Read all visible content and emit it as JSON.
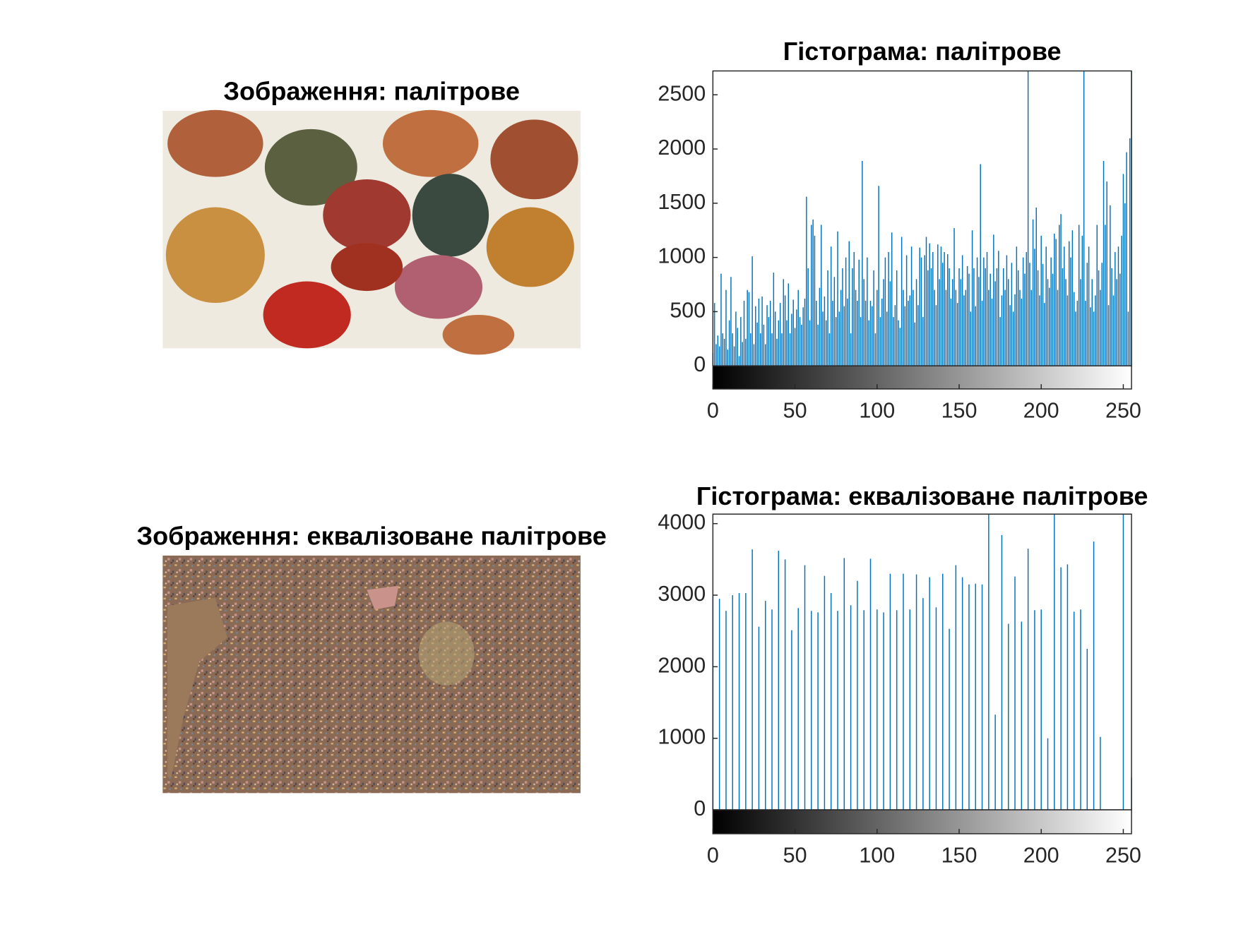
{
  "images": [
    {
      "title": "Зображення: палітрове"
    },
    {
      "title": "Зображення: еквалізоване палітрове"
    }
  ],
  "chart_data": [
    {
      "type": "stem",
      "title": "Гістограма: палітрове",
      "color": "#0072bd",
      "x": [
        0,
        1,
        2,
        3,
        4,
        5,
        6,
        7,
        8,
        9,
        10,
        11,
        12,
        13,
        14,
        15,
        16,
        17,
        18,
        19,
        20,
        21,
        22,
        23,
        24,
        25,
        26,
        27,
        28,
        29,
        30,
        31,
        32,
        33,
        34,
        35,
        36,
        37,
        38,
        39,
        40,
        41,
        42,
        43,
        44,
        45,
        46,
        47,
        48,
        49,
        50,
        51,
        52,
        53,
        54,
        55,
        56,
        57,
        58,
        59,
        60,
        61,
        62,
        63,
        64,
        65,
        66,
        67,
        68,
        69,
        70,
        71,
        72,
        73,
        74,
        75,
        76,
        77,
        78,
        79,
        80,
        81,
        82,
        83,
        84,
        85,
        86,
        87,
        88,
        89,
        90,
        91,
        92,
        93,
        94,
        95,
        96,
        97,
        98,
        99,
        100,
        101,
        102,
        103,
        104,
        105,
        106,
        107,
        108,
        109,
        110,
        111,
        112,
        113,
        114,
        115,
        116,
        117,
        118,
        119,
        120,
        121,
        122,
        123,
        124,
        125,
        126,
        127,
        128,
        129,
        130,
        131,
        132,
        133,
        134,
        135,
        136,
        137,
        138,
        139,
        140,
        141,
        142,
        143,
        144,
        145,
        146,
        147,
        148,
        149,
        150,
        151,
        152,
        153,
        154,
        155,
        156,
        157,
        158,
        159,
        160,
        161,
        162,
        163,
        164,
        165,
        166,
        167,
        168,
        169,
        170,
        171,
        172,
        173,
        174,
        175,
        176,
        177,
        178,
        179,
        180,
        181,
        182,
        183,
        184,
        185,
        186,
        187,
        188,
        189,
        190,
        191,
        192,
        193,
        194,
        195,
        196,
        197,
        198,
        199,
        200,
        201,
        202,
        203,
        204,
        205,
        206,
        207,
        208,
        209,
        210,
        211,
        212,
        213,
        214,
        215,
        216,
        217,
        218,
        219,
        220,
        221,
        222,
        223,
        224,
        225,
        226,
        227,
        228,
        229,
        230,
        231,
        232,
        233,
        234,
        235,
        236,
        237,
        238,
        239,
        240,
        241,
        242,
        243,
        244,
        245,
        246,
        247,
        248,
        249,
        250,
        251,
        252,
        253,
        254,
        255
      ],
      "values": [
        120,
        580,
        200,
        280,
        180,
        850,
        300,
        250,
        700,
        150,
        420,
        820,
        300,
        180,
        500,
        350,
        90,
        450,
        220,
        600,
        250,
        700,
        680,
        300,
        1010,
        200,
        550,
        400,
        620,
        300,
        640,
        380,
        200,
        560,
        450,
        600,
        300,
        860,
        500,
        250,
        420,
        580,
        300,
        800,
        650,
        420,
        760,
        300,
        480,
        610,
        350,
        520,
        700,
        450,
        380,
        540,
        620,
        1560,
        900,
        420,
        1300,
        1350,
        1200,
        600,
        380,
        720,
        1300,
        500,
        640,
        420,
        880,
        300,
        1100,
        600,
        820,
        450,
        1240,
        500,
        700,
        900,
        550,
        1000,
        620,
        1150,
        300,
        900,
        1050,
        700,
        600,
        980,
        450,
        1890,
        800,
        600,
        1000,
        420,
        600,
        550,
        880,
        300,
        700,
        1660,
        450,
        620,
        800,
        1000,
        500,
        1050,
        780,
        1230,
        450,
        560,
        880,
        420,
        350,
        1190,
        700,
        550,
        1020,
        600,
        650,
        1100,
        700,
        400,
        800,
        560,
        1090,
        1000,
        450,
        1020,
        1190,
        880,
        1130,
        900,
        1050,
        700,
        560,
        1120,
        800,
        1100,
        950,
        1050,
        700,
        1030,
        900,
        620,
        800,
        1270,
        700,
        580,
        900,
        800,
        1020,
        650,
        700,
        920,
        850,
        500,
        1250,
        900,
        550,
        1000,
        820,
        1860,
        600,
        1000,
        900,
        1050,
        700,
        850,
        620,
        1210,
        780,
        900,
        1060,
        450,
        650,
        900,
        700,
        1020,
        800,
        560,
        950,
        500,
        660,
        1100,
        880,
        700,
        620,
        1000,
        850,
        1050,
        2720,
        950,
        700,
        1350,
        1080,
        1460,
        880,
        650,
        1200,
        940,
        580,
        1100,
        800,
        720,
        1000,
        850,
        1220,
        1170,
        700,
        1300,
        1400,
        900,
        1100,
        800,
        650,
        1150,
        1000,
        1250,
        680,
        500,
        600,
        1300,
        800,
        1200,
        2720,
        600,
        950,
        1100,
        540,
        800,
        500,
        650,
        1300,
        880,
        700,
        950,
        1890,
        1300,
        1700,
        560,
        1480,
        900,
        650,
        1050,
        800,
        1100,
        850,
        1200,
        1770,
        1500,
        1970,
        500,
        2100,
        2720
      ],
      "xlim": [
        0,
        255
      ],
      "ylim": [
        0,
        2720
      ],
      "xticks": [
        0,
        50,
        100,
        150,
        200,
        250
      ],
      "yticks": [
        0,
        500,
        1000,
        1500,
        2000,
        2500
      ]
    },
    {
      "type": "stem",
      "title": "Гістограма: еквалізоване палітрове",
      "color": "#0072bd",
      "x": [
        0,
        4,
        8,
        12,
        16,
        20,
        24,
        28,
        32,
        36,
        40,
        44,
        48,
        52,
        56,
        60,
        64,
        68,
        72,
        76,
        80,
        84,
        88,
        92,
        96,
        100,
        104,
        108,
        112,
        116,
        120,
        124,
        128,
        132,
        136,
        140,
        144,
        148,
        152,
        156,
        160,
        164,
        168,
        172,
        176,
        180,
        184,
        188,
        192,
        196,
        200,
        204,
        208,
        212,
        216,
        220,
        224,
        228,
        232,
        236,
        250,
        255
      ],
      "values": [
        2980,
        2950,
        2780,
        3000,
        3030,
        3030,
        3640,
        2560,
        2920,
        2800,
        3620,
        3500,
        2510,
        2820,
        3420,
        2780,
        2760,
        3270,
        3030,
        2780,
        3520,
        2860,
        3200,
        2790,
        3510,
        2800,
        2760,
        3300,
        2790,
        3300,
        2800,
        3290,
        2960,
        3250,
        2830,
        3300,
        2530,
        3420,
        3250,
        3150,
        3160,
        3150,
        4133,
        1330,
        3840,
        2600,
        3260,
        2630,
        3650,
        2790,
        2800,
        1000,
        4133,
        3390,
        3430,
        2770,
        2800,
        2250,
        3750,
        1020,
        4133,
        450
      ],
      "xlim": [
        0,
        255
      ],
      "ylim": [
        0,
        4133
      ],
      "xticks": [
        0,
        50,
        100,
        150,
        200,
        250
      ],
      "yticks": [
        0,
        1000,
        2000,
        3000,
        4000
      ]
    }
  ]
}
